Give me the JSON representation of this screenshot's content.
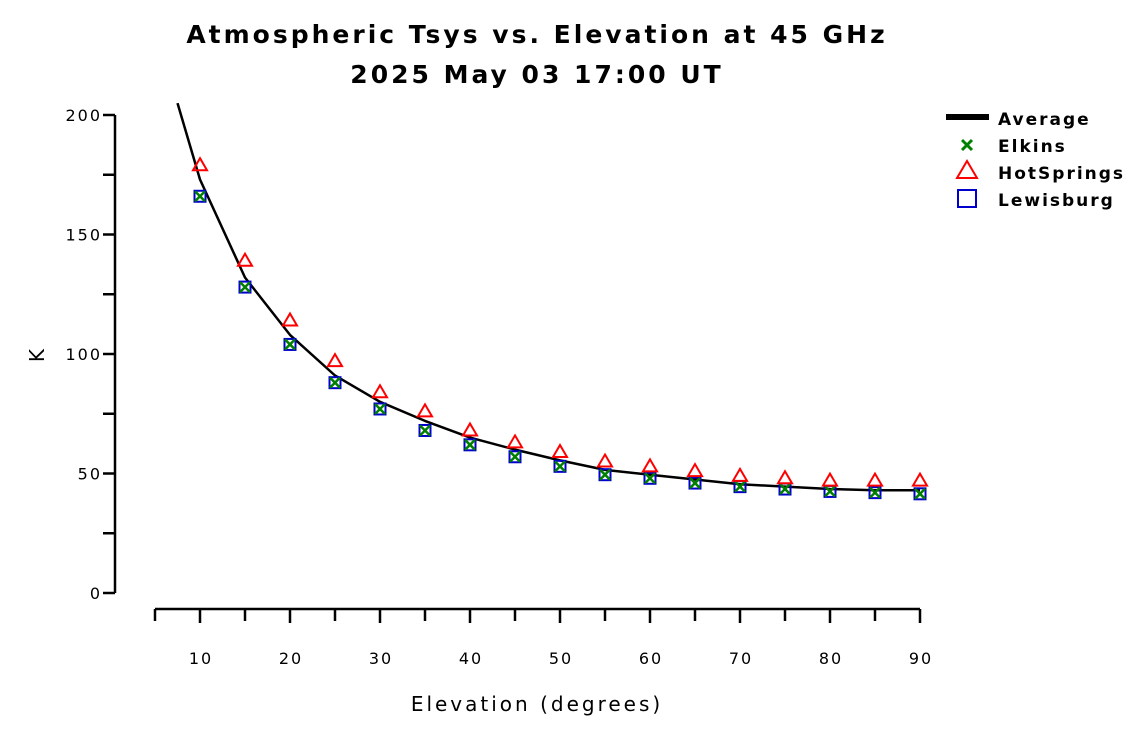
{
  "chart_data": {
    "type": "scatter",
    "title": "Atmospheric Tsys vs. Elevation at 45 GHz",
    "subtitle": "2025 May 03 17:00 UT",
    "xlabel": "Elevation (degrees)",
    "ylabel": "K",
    "xlim": [
      5,
      90
    ],
    "ylim": [
      0,
      200
    ],
    "xticks": [
      10,
      20,
      30,
      40,
      50,
      60,
      70,
      80,
      90
    ],
    "yticks": [
      0,
      50,
      100,
      150,
      200
    ],
    "legend_position": "top-right",
    "x": [
      10,
      15,
      20,
      25,
      30,
      35,
      40,
      45,
      50,
      55,
      60,
      65,
      70,
      75,
      80,
      85,
      90
    ],
    "series": [
      {
        "name": "Average",
        "style": "line",
        "color": "#000000",
        "x": [
          7.5,
          10,
          15,
          20,
          25,
          30,
          35,
          40,
          45,
          50,
          55,
          60,
          65,
          70,
          75,
          80,
          85,
          90
        ],
        "values": [
          205,
          173,
          132,
          108,
          91,
          80,
          72,
          65,
          60,
          55.5,
          51.5,
          49.5,
          47.5,
          45.5,
          44.5,
          43.5,
          43,
          43
        ]
      },
      {
        "name": "Elkins",
        "marker": "x",
        "color": "#008000",
        "values": [
          166,
          128,
          104,
          88,
          77,
          68,
          62,
          57,
          53,
          49.5,
          48,
          46,
          44.5,
          43.5,
          42.5,
          42,
          41.5
        ]
      },
      {
        "name": "HotSprings",
        "marker": "triangle",
        "color": "#ff0000",
        "values": [
          179,
          139,
          114,
          97,
          84,
          76,
          68,
          63,
          59,
          55,
          53,
          51,
          49,
          48,
          47,
          47,
          47
        ]
      },
      {
        "name": "Lewisburg",
        "marker": "square",
        "color": "#0000cc",
        "values": [
          166,
          128,
          104,
          88,
          77,
          68,
          62,
          57,
          53,
          49.5,
          48,
          46,
          44.5,
          43.5,
          42.5,
          42,
          41.5
        ]
      }
    ]
  }
}
